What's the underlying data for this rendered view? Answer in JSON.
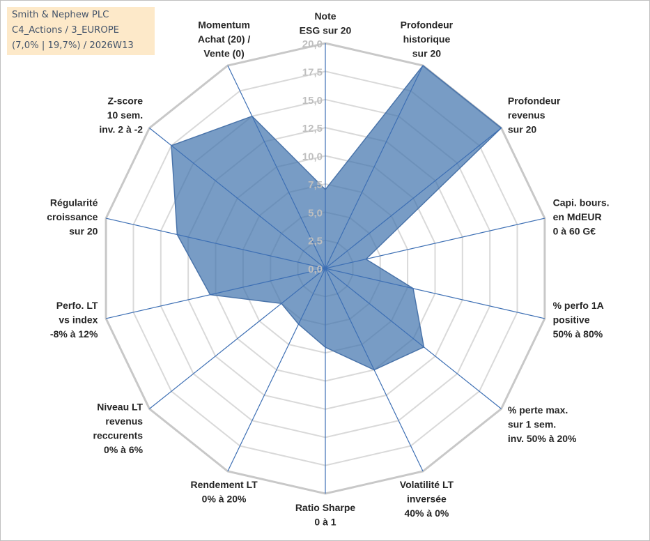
{
  "info": {
    "line1": "Smith & Nephew PLC",
    "line2": "C4_Actions / 3_EUROPE",
    "line3": "(7,0% | 19,7%) / 2026W13"
  },
  "colors": {
    "fill": "#3f72ad",
    "stroke": "#4a74aa",
    "grid": "#d9d9d9",
    "spoke": "#3d6fb4",
    "ticks": "#bfbfbf",
    "label": "#262626",
    "info_bg": "#fde9c9",
    "info_text": "#44546a"
  },
  "chart_data": {
    "type": "radar",
    "title": "",
    "rmin": 0,
    "rmax": 20,
    "tick_step": 2.5,
    "tick_labels": [
      "0,0",
      "2,5",
      "5,0",
      "7,5",
      "10,0",
      "12,5",
      "15,0",
      "17,5",
      "20,0"
    ],
    "categories": [
      [
        "Note",
        "ESG sur 20"
      ],
      [
        "Profondeur",
        "historique",
        "sur 20"
      ],
      [
        "Profondeur",
        "revenus",
        "sur 20"
      ],
      [
        "Capi. bours.",
        "en MdEUR",
        "0 à 60 G€"
      ],
      [
        "% perfo 1A",
        "positive",
        "50% à 80%"
      ],
      [
        "% perte max.",
        "sur 1 sem.",
        "inv. 50% à 20%"
      ],
      [
        "Volatilité LT",
        "inversée",
        "40% à 0%"
      ],
      [
        "Ratio Sharpe",
        "0 à 1"
      ],
      [
        "Rendement LT",
        "0% à 20%"
      ],
      [
        "Niveau LT",
        "revenus",
        "reccurents",
        "0% à 6%"
      ],
      [
        "Perfo. LT",
        "vs index",
        "-8% à 12%"
      ],
      [
        "Régularité",
        "croissance",
        "sur 20"
      ],
      [
        "Z-score",
        "10 sem.",
        "inv. 2 à -2"
      ],
      [
        "Momentum",
        "Achat (20) /",
        "Vente (0)"
      ]
    ],
    "series": [
      {
        "name": "Smith & Nephew PLC",
        "values": [
          7.0,
          20.0,
          20.0,
          3.7,
          8.0,
          11.2,
          10.0,
          7.0,
          5.5,
          5.0,
          10.5,
          13.5,
          17.5,
          15.0
        ]
      }
    ]
  }
}
